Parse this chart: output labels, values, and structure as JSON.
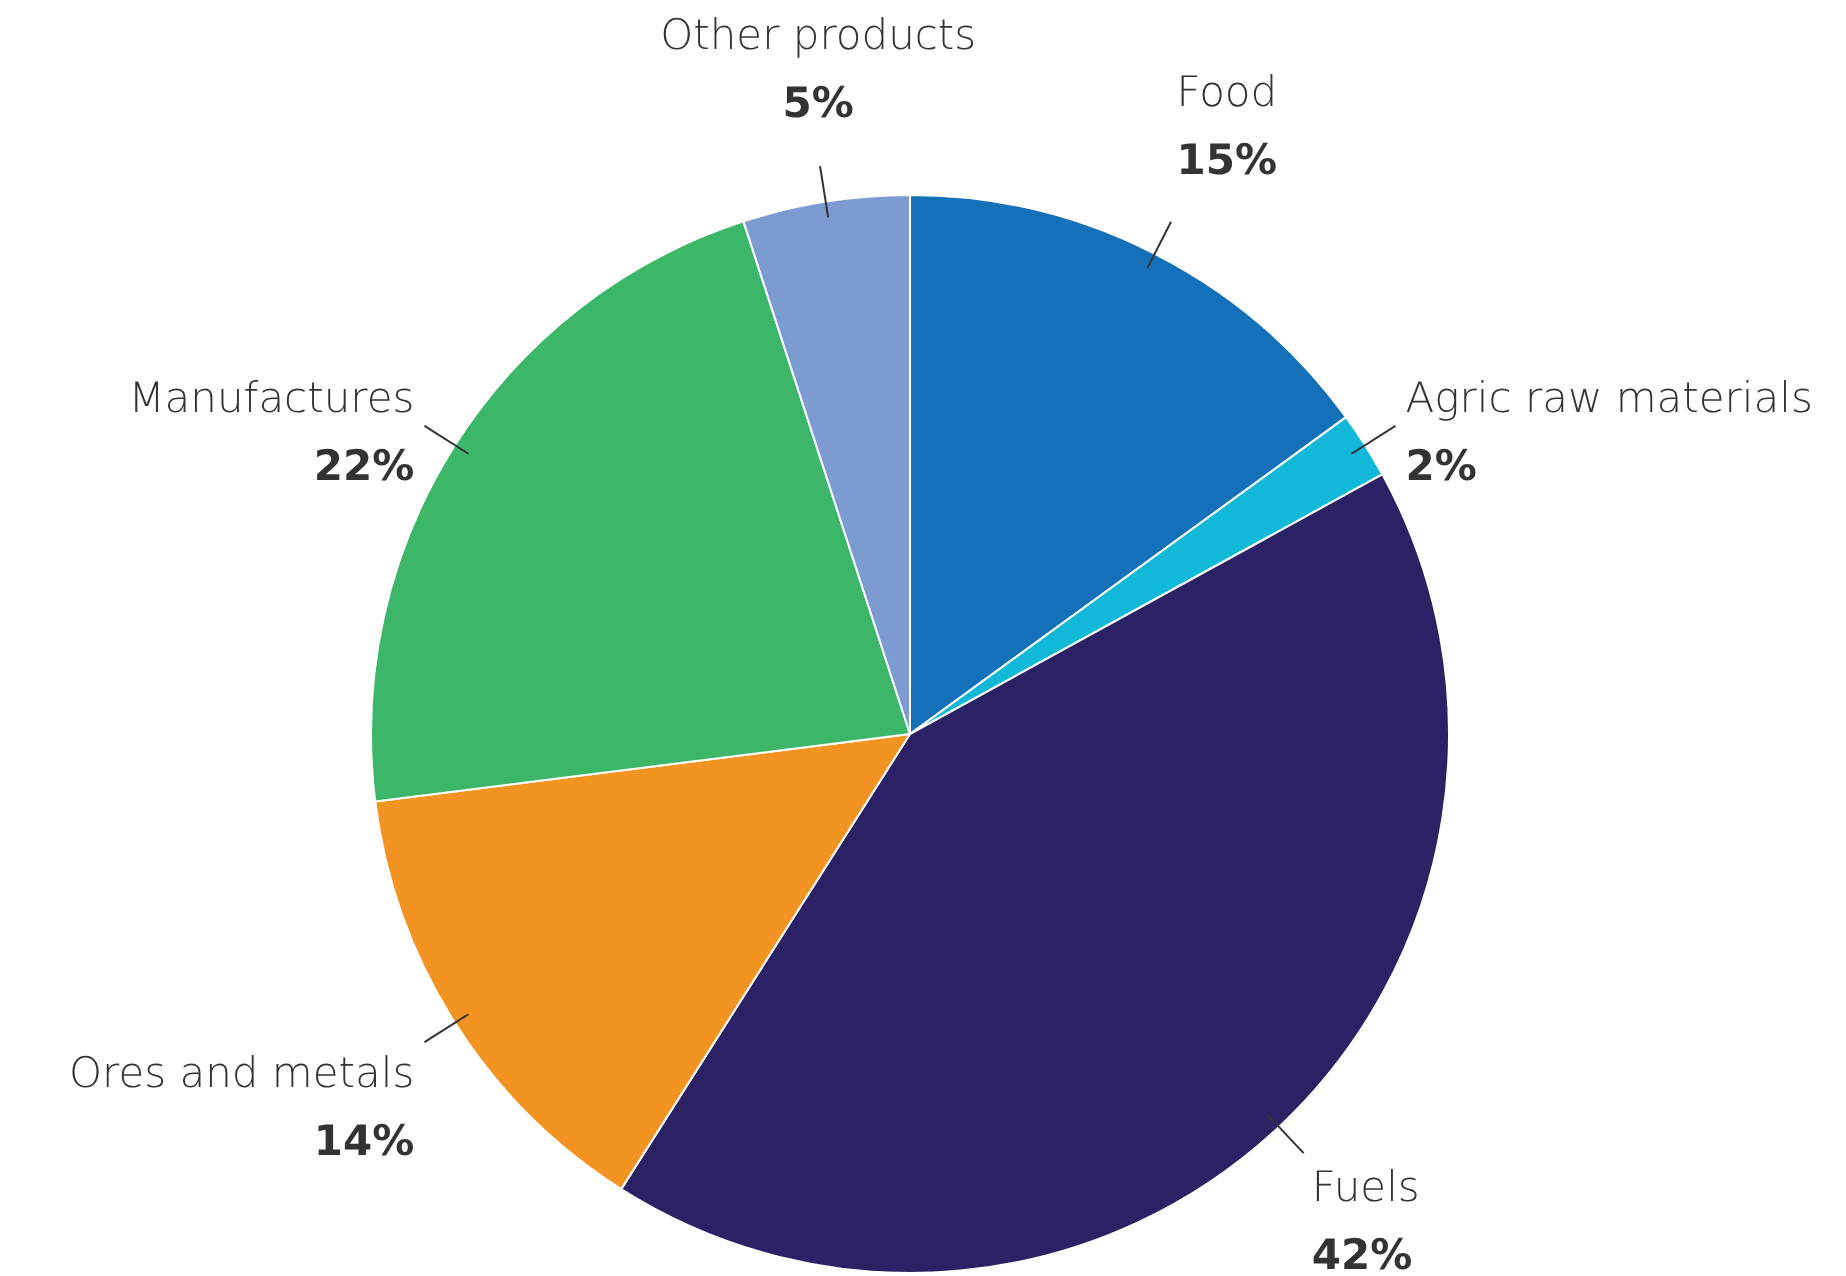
{
  "chart_data": {
    "type": "pie",
    "categories": [
      "Food",
      "Agric raw materials",
      "Fuels",
      "Ores and metals",
      "Manufactures",
      "Other products"
    ],
    "values": [
      15,
      2,
      42,
      14,
      22,
      5
    ],
    "value_labels": [
      "15%",
      "2%",
      "42%",
      "14%",
      "22%",
      "5%"
    ],
    "colors": [
      "#1470b8",
      "#12b8d8",
      "#2a2264",
      "#f39321",
      "#3cb76a",
      "#7b9bd1"
    ],
    "legend": false
  }
}
